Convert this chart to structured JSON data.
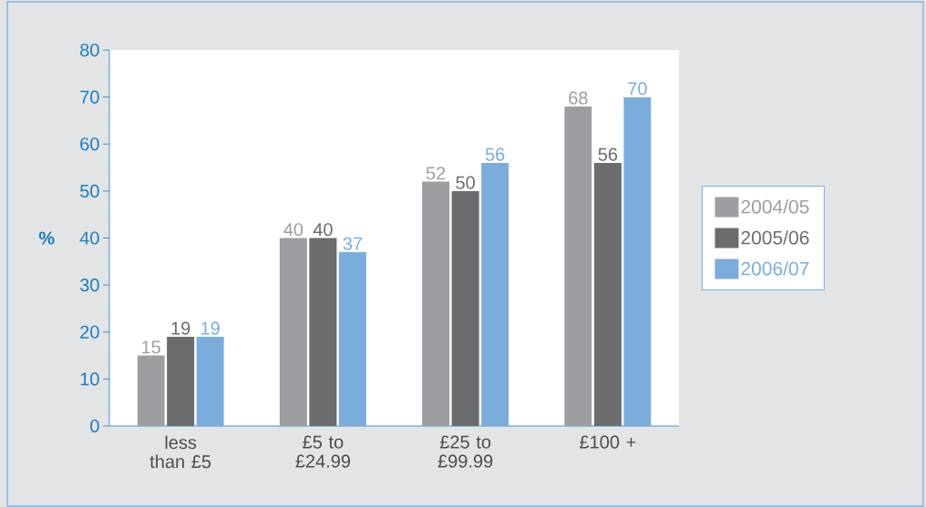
{
  "chart_data": {
    "type": "bar",
    "ylabel": "%",
    "categories": [
      "less than £5",
      "£5 to £24.99",
      "£25 to £99.99",
      "£100 +"
    ],
    "series": [
      {
        "name": "2004/05",
        "color": "#9d9ea2",
        "values": [
          15,
          40,
          52,
          68
        ]
      },
      {
        "name": "2005/06",
        "color": "#6b6c6e",
        "values": [
          19,
          40,
          50,
          56
        ]
      },
      {
        "name": "2006/07",
        "color": "#7aaddc",
        "values": [
          19,
          37,
          56,
          70
        ]
      }
    ],
    "ylim": [
      0,
      80
    ],
    "yticks": [
      0,
      10,
      20,
      30,
      40,
      50,
      60,
      70,
      80
    ],
    "data_labels": true,
    "legend": "right",
    "grid": false
  }
}
